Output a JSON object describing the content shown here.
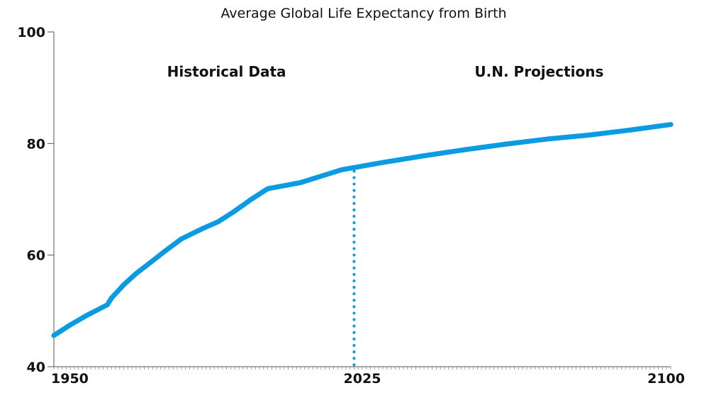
{
  "chart_data": {
    "type": "line",
    "title": "Average Global Life Expectancy from Birth",
    "xlabel": "",
    "ylabel": "",
    "xlim": [
      1950,
      2100
    ],
    "ylim": [
      40,
      100
    ],
    "x_ticks": [
      1950,
      2025,
      2100
    ],
    "x_tick_labels": [
      "1950",
      "2025",
      "2100"
    ],
    "y_ticks": [
      40,
      60,
      80,
      100
    ],
    "y_tick_labels": [
      "40",
      "60",
      "80",
      "100"
    ],
    "grid": false,
    "legend": "none",
    "annotations": [
      {
        "label": "Historical Data",
        "x": 1992,
        "y": 92
      },
      {
        "label": "U.N. Projections",
        "x": 2068,
        "y": 92
      }
    ],
    "divider": {
      "x": 2023,
      "style": "dotted"
    },
    "series": [
      {
        "color": "#0a9be2",
        "x": [
          1950,
          1954,
          1958,
          1963,
          1964,
          1967,
          1970,
          1973,
          1977,
          1981,
          1986,
          1990,
          1994,
          1998,
          2002,
          2010,
          2020,
          2030,
          2040,
          2050,
          2060,
          2070,
          2080,
          2090,
          2100
        ],
        "y": [
          45.6,
          47.5,
          49.2,
          51.1,
          52.3,
          54.7,
          56.7,
          58.4,
          60.7,
          62.9,
          64.7,
          66.0,
          67.9,
          70.0,
          71.9,
          73.0,
          75.3,
          76.6,
          77.8,
          78.9,
          79.9,
          80.8,
          81.5,
          82.4,
          83.4
        ]
      }
    ]
  }
}
